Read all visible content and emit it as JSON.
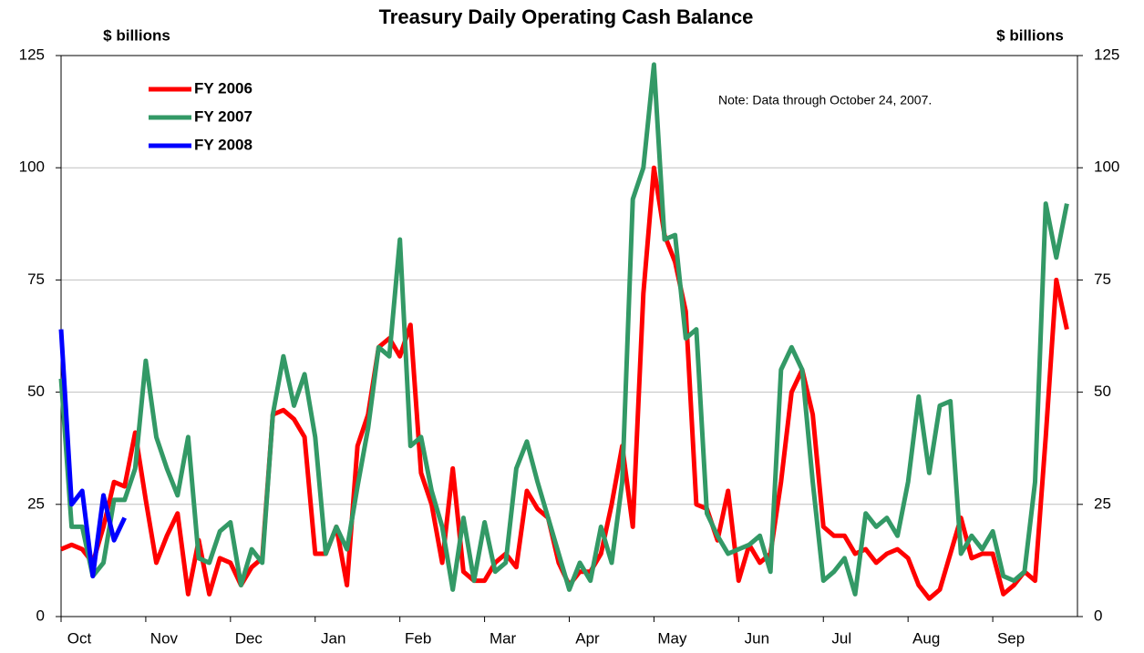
{
  "chart_data": {
    "type": "line",
    "title": "Treasury Daily Operating Cash Balance",
    "y_label": "$ billions",
    "y2_label": "$ billions",
    "note": "Note: Data through October 24, 2007.",
    "categories": [
      "Oct",
      null,
      null,
      null,
      null,
      null,
      null,
      null,
      "Nov",
      null,
      null,
      null,
      null,
      null,
      null,
      null,
      "Dec",
      null,
      null,
      null,
      null,
      null,
      null,
      null,
      "Jan",
      null,
      null,
      null,
      null,
      null,
      null,
      null,
      "Feb",
      null,
      null,
      null,
      null,
      null,
      null,
      null,
      "Mar",
      null,
      null,
      null,
      null,
      null,
      null,
      null,
      "Apr",
      null,
      null,
      null,
      null,
      null,
      null,
      null,
      "May",
      null,
      null,
      null,
      null,
      null,
      null,
      null,
      "Jun",
      null,
      null,
      null,
      null,
      null,
      null,
      null,
      "Jul",
      null,
      null,
      null,
      null,
      null,
      null,
      null,
      "Aug",
      null,
      null,
      null,
      null,
      null,
      null,
      null,
      "Sep",
      null,
      null,
      null,
      null,
      null,
      null,
      null
    ],
    "series": [
      {
        "name": "FY 2006",
        "color": "#ff0000",
        "values": [
          15,
          16,
          15,
          12,
          20,
          30,
          29,
          41,
          26,
          12,
          18,
          23,
          5,
          17,
          5,
          13,
          12,
          7,
          11,
          13,
          45,
          46,
          44,
          40,
          14,
          14,
          20,
          7,
          38,
          45,
          60,
          62,
          58,
          65,
          32,
          25,
          12,
          33,
          10,
          8,
          8,
          12,
          14,
          11,
          28,
          24,
          22,
          12,
          7,
          10,
          10,
          14,
          25,
          38,
          20,
          72,
          100,
          85,
          79,
          68,
          25,
          24,
          17,
          28,
          8,
          16,
          12,
          14,
          30,
          50,
          55,
          45,
          20,
          18,
          18,
          14,
          15,
          12,
          14,
          15,
          13,
          7,
          4,
          6,
          14,
          22,
          13,
          14,
          14,
          5,
          7,
          10,
          8,
          40,
          75,
          64
        ]
      },
      {
        "name": "FY 2007",
        "color": "#339966",
        "values": [
          53,
          20,
          20,
          9,
          12,
          26,
          26,
          33,
          57,
          40,
          33,
          27,
          40,
          13,
          12,
          19,
          21,
          7,
          15,
          12,
          45,
          58,
          47,
          54,
          40,
          14,
          20,
          15,
          29,
          42,
          60,
          58,
          84,
          38,
          40,
          28,
          20,
          6,
          22,
          8,
          21,
          10,
          12,
          33,
          39,
          30,
          22,
          14,
          6,
          12,
          8,
          20,
          12,
          30,
          93,
          100,
          123,
          84,
          85,
          62,
          64,
          23,
          18,
          14,
          15,
          16,
          18,
          10,
          55,
          60,
          55,
          30,
          8,
          10,
          13,
          5,
          23,
          20,
          22,
          18,
          30,
          49,
          32,
          47,
          48,
          14,
          18,
          15,
          19,
          9,
          8,
          10,
          30,
          92,
          80,
          92
        ]
      },
      {
        "name": "FY 2008",
        "color": "#0000ff",
        "values": [
          64,
          25,
          28,
          9,
          27,
          17,
          22,
          null,
          null,
          null,
          null,
          null,
          null,
          null,
          null,
          null,
          null,
          null,
          null,
          null,
          null,
          null,
          null,
          null,
          null,
          null,
          null,
          null,
          null,
          null,
          null,
          null,
          null,
          null,
          null,
          null,
          null,
          null,
          null,
          null,
          null,
          null,
          null,
          null,
          null,
          null,
          null,
          null,
          null,
          null,
          null,
          null,
          null,
          null,
          null,
          null,
          null,
          null,
          null,
          null,
          null,
          null,
          null,
          null,
          null,
          null,
          null,
          null,
          null,
          null,
          null,
          null,
          null,
          null,
          null,
          null,
          null,
          null,
          null,
          null,
          null,
          null,
          null,
          null,
          null,
          null,
          null,
          null,
          null,
          null,
          null,
          null,
          null,
          null,
          null,
          null
        ]
      }
    ],
    "ylim": [
      0,
      125
    ],
    "yticks": [
      0,
      25,
      50,
      75,
      100,
      125
    ],
    "y2lim": [
      0,
      125
    ],
    "y2ticks": [
      0,
      25,
      50,
      75,
      100,
      125
    ],
    "grid": true,
    "legend": "upper left"
  }
}
